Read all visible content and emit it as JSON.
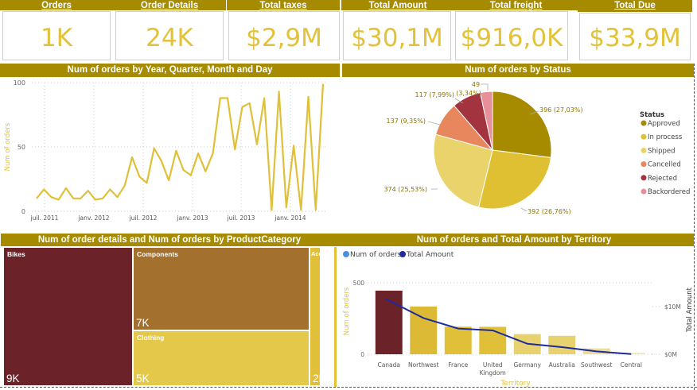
{
  "kpis": [
    {
      "label": "Orders",
      "value": "1K"
    },
    {
      "label": "Order Details",
      "value": "24K"
    },
    {
      "label": "Total taxes",
      "value": "$2,9M"
    },
    {
      "label": "Total Amount",
      "value": "$30,1M"
    },
    {
      "label": "Total freight",
      "value": "$916,0K"
    },
    {
      "label": "Total Due",
      "value": "$33,9M"
    }
  ],
  "colors": {
    "header": "#a68a00",
    "accent": "#e3c23a",
    "line": "#e0c038",
    "bar_dark": "#6b2228",
    "bar_gold": "#dcba35",
    "bar_light": "#e8d270",
    "total_amount_line": "#1f2b9c"
  },
  "chart_data": [
    {
      "type": "line",
      "title": "Num of orders by Year, Quarter, Month and Day",
      "xlabel": "",
      "ylabel": "Num of orders",
      "ylim": [
        0,
        100
      ],
      "yticks": [
        "0",
        "50",
        "100"
      ],
      "xticks": [
        "juil. 2011",
        "janv. 2012",
        "juil. 2012",
        "janv. 2013",
        "juil. 2013",
        "janv. 2014"
      ],
      "grid": true,
      "values": [
        10,
        17,
        11,
        9,
        18,
        10,
        10,
        16,
        9,
        10,
        17,
        11,
        20,
        42,
        27,
        22,
        49,
        39,
        24,
        47,
        32,
        28,
        45,
        31,
        45,
        88,
        88,
        48,
        81,
        84,
        52,
        88,
        1,
        93,
        3,
        51,
        1,
        89,
        1,
        99
      ]
    },
    {
      "type": "pie",
      "title": "Num of orders by Status",
      "legend_title": "Status",
      "legend_position": "right",
      "slices": [
        {
          "label": "Approved",
          "value": 396,
          "percent": "27,03%",
          "data_label": "396 (27,03%)",
          "color": "#a68a00"
        },
        {
          "label": "In process",
          "value": 392,
          "percent": "26,76%",
          "data_label": "392 (26,76%)",
          "color": "#dfc032"
        },
        {
          "label": "Shipped",
          "value": 374,
          "percent": "25,53%",
          "data_label": "374 (25,53%)",
          "color": "#ebd36b"
        },
        {
          "label": "Cancelled",
          "value": 137,
          "percent": "9,35%",
          "data_label": "137 (9,35%)",
          "color": "#e8875e"
        },
        {
          "label": "Rejected",
          "value": 117,
          "percent": "7,99%",
          "data_label": "117 (7,99%)",
          "color": "#a2333f"
        },
        {
          "label": "Backordered",
          "value": 49,
          "percent": "3,34%",
          "data_label_line1": "49",
          "data_label_line2": "(3,34%)",
          "color": "#e8909a"
        }
      ]
    },
    {
      "type": "treemap",
      "title": "Num of order details and Num of orders by ProductCategory",
      "items": [
        {
          "label": "Bikes",
          "value_label": "9K",
          "value": 9000,
          "color": "#6b2228"
        },
        {
          "label": "Components",
          "value_label": "7K",
          "value": 7000,
          "color": "#a3702e"
        },
        {
          "label": "Clothing",
          "value_label": "5K",
          "value": 5000,
          "color": "#e3c849"
        },
        {
          "label": "Acces...",
          "value_label": "2K",
          "value": 2000,
          "color": "#e0c038"
        }
      ]
    },
    {
      "type": "bar",
      "title": "Num of orders and Total Amount by Territory",
      "legend": [
        "Num of orders",
        "Total Amount"
      ],
      "legend_colors": [
        "#4a8fe0",
        "#1f2b9c"
      ],
      "legend_position": "top-left",
      "xlabel": "Territory",
      "ylabel": "Num of orders",
      "y2label": "Total Amount",
      "ylim": [
        0,
        500
      ],
      "yticks": [
        "0",
        "500"
      ],
      "y2lim": [
        0,
        15
      ],
      "y2ticks": [
        "$0M",
        "$10M"
      ],
      "categories": [
        "Canada",
        "Northwest",
        "France",
        "United Kingdom",
        "Germany",
        "Australia",
        "Southwest",
        "Central"
      ],
      "category_lines": [
        [
          "Canada"
        ],
        [
          "Northwest"
        ],
        [
          "France"
        ],
        [
          "United",
          "Kingdom"
        ],
        [
          "Germany"
        ],
        [
          "Australia"
        ],
        [
          "Southwest"
        ],
        [
          "Central"
        ]
      ],
      "series": [
        {
          "name": "Num of orders",
          "values": [
            445,
            334,
            193,
            192,
            141,
            129,
            41,
            10
          ],
          "colors": [
            "#6b2228",
            "#dcba35",
            "#e0c038",
            "#e0c038",
            "#e8d270",
            "#e8d270",
            "#ecdc95",
            "#f0e6b8"
          ]
        },
        {
          "name": "Total Amount",
          "values": [
            11.6,
            7.6,
            5.4,
            5.0,
            2.2,
            1.5,
            0.6,
            0.05
          ],
          "unit": "$M"
        }
      ]
    }
  ]
}
